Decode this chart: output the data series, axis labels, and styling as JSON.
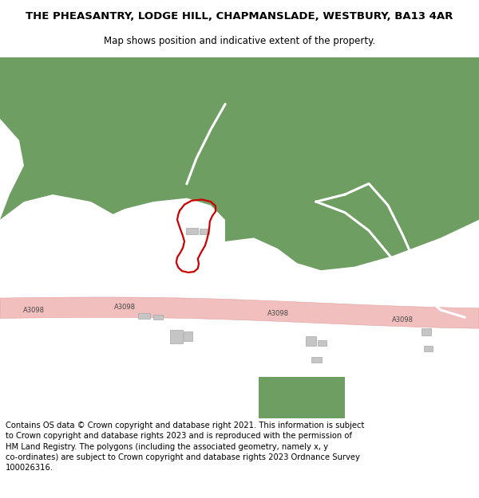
{
  "title": "THE PHEASANTRY, LODGE HILL, CHAPMANSLADE, WESTBURY, BA13 4AR",
  "subtitle": "Map shows position and indicative extent of the property.",
  "footer": "Contains OS data © Crown copyright and database right 2021. This information is subject to Crown copyright and database rights 2023 and is reproduced with the permission of HM Land Registry. The polygons (including the associated geometry, namely x, y co-ordinates) are subject to Crown copyright and database rights 2023 Ordnance Survey 100026316.",
  "bg_color": "#f0ede8",
  "green_color": "#6e9e62",
  "road_color": "#f2bfbf",
  "road_border": "#e0a0a0",
  "red_outline": "#cc0000",
  "title_fontsize": 9.5,
  "subtitle_fontsize": 8.5,
  "footer_fontsize": 7.2,
  "figsize": [
    6.0,
    6.25
  ],
  "dpi": 100
}
